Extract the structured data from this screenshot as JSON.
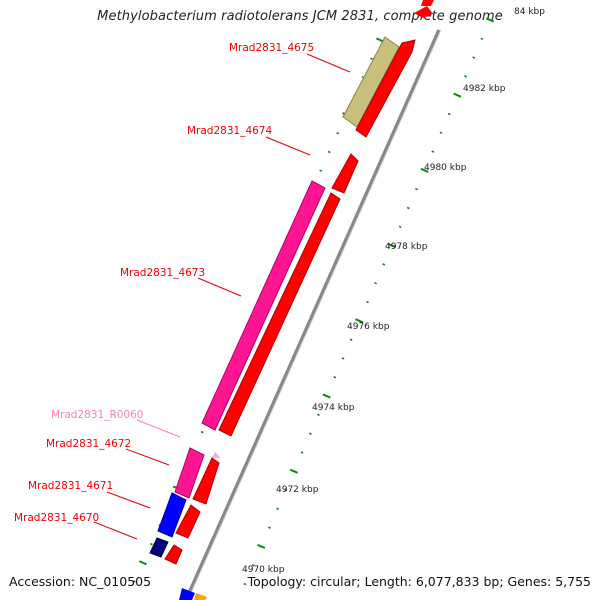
{
  "title": "Methylobacterium radiotolerans JCM 2831, complete genome",
  "accession": "Accession: NC_010505",
  "topology": "Topology: circular; Length: 6,077,833 bp; Genes: 5,755",
  "colors": {
    "forward_cds": "#ff0000",
    "reverse_cds_pink": "#ff1493",
    "reverse_cds_olive": "#c8c07a",
    "reverse_cds_blue": "#0000ff",
    "reverse_cds_navy": "#000080",
    "rna": "#ffaacc",
    "backbone": "#888888",
    "tick": "#0a8a0a",
    "label_cds": "#ee0000",
    "label_rna": "#ff7fb0"
  },
  "scale_labels": [
    "84 kbp",
    "4982 kbp",
    "4980 kbp",
    "4978 kbp",
    "4976 kbp",
    "4974 kbp",
    "4972 kbp",
    "4970 kbp"
  ],
  "genes": [
    {
      "label": "Mrad2831_4675",
      "type": "cds"
    },
    {
      "label": "Mrad2831_4674",
      "type": "cds"
    },
    {
      "label": "Mrad2831_4673",
      "type": "cds"
    },
    {
      "label": "Mrad2831_R0060",
      "type": "rna"
    },
    {
      "label": "Mrad2831_4672",
      "type": "cds"
    },
    {
      "label": "Mrad2831_4671",
      "type": "cds"
    },
    {
      "label": "Mrad2831_4670",
      "type": "cds"
    }
  ]
}
